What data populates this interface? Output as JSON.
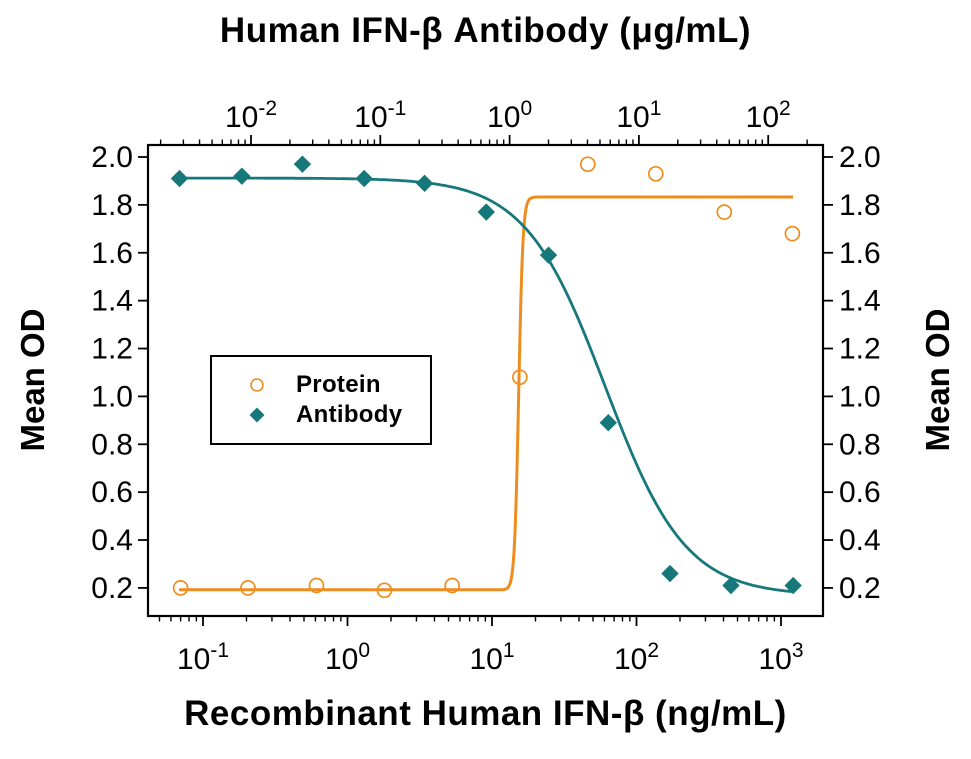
{
  "chart_data": {
    "type": "scatter",
    "title_top_axis": "Human IFN-β Antibody (μg/mL)",
    "xlabel_bottom": "Recombinant Human IFN-β (ng/mL)",
    "ylabel_left": "Mean OD",
    "ylabel_right": "Mean OD",
    "y_ticks": [
      "2.0",
      "1.8",
      "1.6",
      "1.4",
      "1.2",
      "1.0",
      "0.8",
      "0.6",
      "0.4",
      "0.2"
    ],
    "y_tick_values": [
      2.0,
      1.8,
      1.6,
      1.4,
      1.2,
      1.0,
      0.8,
      0.6,
      0.4,
      0.2
    ],
    "y_range": [
      0.1,
      2.05
    ],
    "x_axis_bottom": {
      "scale": "log",
      "units": "ng/mL",
      "tick_base": "10",
      "tick_exponents": [
        -1,
        0,
        1,
        2,
        3
      ],
      "minor_decade_range": [
        -2,
        3
      ]
    },
    "x_axis_top": {
      "scale": "log",
      "units": "µg/mL",
      "tick_base": "10",
      "tick_exponents": [
        -2,
        -1,
        0,
        1,
        2
      ],
      "minor_decade_range": [
        -3,
        2
      ]
    },
    "series": [
      {
        "name": "Protein",
        "axis": "bottom",
        "x_units": "ng/mL",
        "marker": "open-circle",
        "color": "#EE8C1E",
        "x": [
          0.07,
          0.205,
          0.61,
          1.8,
          5.3,
          15.6,
          46,
          136,
          405,
          1200
        ],
        "od": [
          0.2,
          0.2,
          0.21,
          0.19,
          0.21,
          1.08,
          1.97,
          1.93,
          1.77,
          1.68
        ],
        "fit": {
          "model": "4PL",
          "bottom": 0.192,
          "top": 1.833,
          "ec50": 15.3,
          "hill": 30
        }
      },
      {
        "name": "Antibody",
        "axis": "top",
        "x_units": "µg/mL",
        "marker": "filled-diamond",
        "color": "#17787C",
        "x": [
          0.0028,
          0.0085,
          0.025,
          0.075,
          0.22,
          0.66,
          2.0,
          5.8,
          17.4,
          51.5,
          156
        ],
        "od": [
          1.91,
          1.92,
          1.97,
          1.91,
          1.89,
          1.77,
          1.59,
          0.89,
          0.26,
          0.21,
          0.21
        ],
        "fit": {
          "model": "4PL",
          "top": 1.912,
          "bottom": 0.168,
          "ic50": 5.5,
          "hill": 1.4
        }
      }
    ],
    "legend": {
      "position": "inside-left",
      "border": true
    }
  },
  "colors": {
    "protein": "#EE8C1E",
    "antibody": "#17787C",
    "axis": "#000000",
    "text": "#000000",
    "background": "#ffffff"
  }
}
